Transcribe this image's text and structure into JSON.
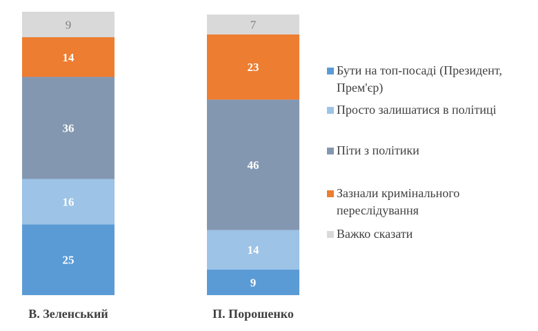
{
  "chart_data": {
    "type": "bar",
    "stacked": true,
    "categories": [
      "В. Зеленський",
      "П. Порошенко"
    ],
    "series": [
      {
        "name": "Бути на топ-посаді (Президент, Прем'єр)",
        "color": "#5b9bd5",
        "label_color": "#ffffff",
        "values": [
          25,
          9
        ]
      },
      {
        "name": "Просто залишатися в політиці",
        "color": "#9dc3e6",
        "label_color": "#ffffff",
        "values": [
          16,
          14
        ]
      },
      {
        "name": "Піти з політики",
        "color": "#8497b0",
        "label_color": "#ffffff",
        "values": [
          36,
          46
        ]
      },
      {
        "name": "Зазнали кримінального переслідування",
        "color": "#ed7d31",
        "label_color": "#ffffff",
        "values": [
          14,
          23
        ]
      },
      {
        "name": "Важко сказати",
        "color": "#d9d9d9",
        "label_color": "#7f7f7f",
        "values": [
          9,
          7
        ]
      }
    ],
    "legend_position": "right",
    "grid": false,
    "ylim": [
      0,
      100
    ]
  }
}
